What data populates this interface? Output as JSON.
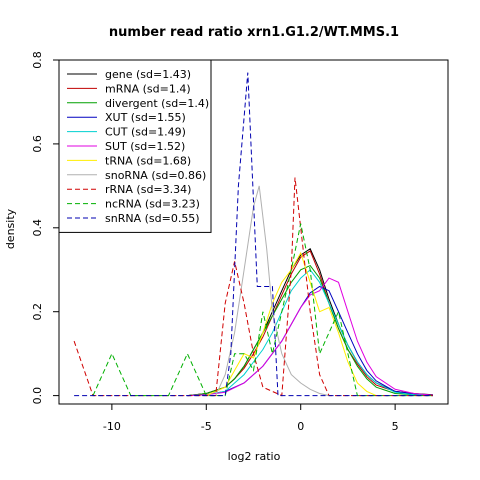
{
  "chart_data": {
    "type": "line",
    "title": "number read ratio xrn1.G1.2/WT.MMS.1",
    "xlabel": "log2 ratio",
    "ylabel": "density",
    "xlim": [
      -12.8,
      7.8
    ],
    "ylim": [
      -0.02,
      0.8
    ],
    "x_ticks": [
      -10,
      -5,
      0,
      5
    ],
    "x_tick_labels": [
      "-10",
      "-5",
      "0",
      "5"
    ],
    "y_ticks": [
      0.0,
      0.2,
      0.4,
      0.6,
      0.8
    ],
    "y_tick_labels": [
      "0.0",
      "0.2",
      "0.4",
      "0.6",
      "0.8"
    ],
    "grid": false,
    "legend_position": "top-left",
    "series": [
      {
        "name": "gene (sd=1.43)",
        "color": "#000000",
        "dash": "solid",
        "points": [
          [
            -6,
            0
          ],
          [
            -5,
            0.005
          ],
          [
            -4,
            0.02
          ],
          [
            -3.5,
            0.04
          ],
          [
            -3,
            0.07
          ],
          [
            -2.5,
            0.11
          ],
          [
            -2,
            0.15
          ],
          [
            -1.5,
            0.2
          ],
          [
            -1,
            0.25
          ],
          [
            -0.5,
            0.3
          ],
          [
            0,
            0.335
          ],
          [
            0.5,
            0.35
          ],
          [
            1,
            0.3
          ],
          [
            1.5,
            0.23
          ],
          [
            2,
            0.17
          ],
          [
            2.5,
            0.12
          ],
          [
            3,
            0.08
          ],
          [
            3.5,
            0.05
          ],
          [
            4,
            0.03
          ],
          [
            5,
            0.01
          ],
          [
            6,
            0.005
          ],
          [
            7,
            0.002
          ]
        ]
      },
      {
        "name": "mRNA (sd=1.4)",
        "color": "#c00000",
        "dash": "solid",
        "points": [
          [
            -6,
            0
          ],
          [
            -5,
            0.005
          ],
          [
            -4,
            0.02
          ],
          [
            -3.5,
            0.04
          ],
          [
            -3,
            0.065
          ],
          [
            -2.5,
            0.1
          ],
          [
            -2,
            0.14
          ],
          [
            -1.5,
            0.19
          ],
          [
            -1,
            0.24
          ],
          [
            -0.5,
            0.29
          ],
          [
            0,
            0.33
          ],
          [
            0.5,
            0.345
          ],
          [
            1,
            0.29
          ],
          [
            1.5,
            0.22
          ],
          [
            2,
            0.16
          ],
          [
            2.5,
            0.11
          ],
          [
            3,
            0.075
          ],
          [
            3.5,
            0.045
          ],
          [
            4,
            0.025
          ],
          [
            5,
            0.01
          ],
          [
            6,
            0.004
          ],
          [
            7,
            0.001
          ]
        ]
      },
      {
        "name": "divergent (sd=1.4)",
        "color": "#00a000",
        "dash": "solid",
        "points": [
          [
            -6,
            0
          ],
          [
            -5,
            0.005
          ],
          [
            -4,
            0.02
          ],
          [
            -3.5,
            0.04
          ],
          [
            -3,
            0.07
          ],
          [
            -2.5,
            0.11
          ],
          [
            -2,
            0.15
          ],
          [
            -1.5,
            0.19
          ],
          [
            -1,
            0.23
          ],
          [
            -0.5,
            0.27
          ],
          [
            0,
            0.3
          ],
          [
            0.5,
            0.31
          ],
          [
            1,
            0.28
          ],
          [
            1.5,
            0.22
          ],
          [
            2,
            0.16
          ],
          [
            2.5,
            0.11
          ],
          [
            3,
            0.07
          ],
          [
            3.5,
            0.04
          ],
          [
            4,
            0.02
          ],
          [
            5,
            0.005
          ],
          [
            6,
            0.002
          ],
          [
            7,
            0
          ]
        ]
      },
      {
        "name": "XUT (sd=1.55)",
        "color": "#0000c0",
        "dash": "solid",
        "points": [
          [
            -6,
            0
          ],
          [
            -5,
            0.002
          ],
          [
            -4,
            0.01
          ],
          [
            -3,
            0.03
          ],
          [
            -2,
            0.07
          ],
          [
            -1,
            0.13
          ],
          [
            -0.5,
            0.17
          ],
          [
            0,
            0.21
          ],
          [
            0.5,
            0.245
          ],
          [
            1,
            0.26
          ],
          [
            1.5,
            0.25
          ],
          [
            2,
            0.2
          ],
          [
            2.5,
            0.15
          ],
          [
            3,
            0.1
          ],
          [
            3.5,
            0.06
          ],
          [
            4,
            0.035
          ],
          [
            5,
            0.01
          ],
          [
            6,
            0.004
          ],
          [
            7,
            0.001
          ]
        ]
      },
      {
        "name": "CUT (sd=1.49)",
        "color": "#00d0d0",
        "dash": "solid",
        "points": [
          [
            -6,
            0
          ],
          [
            -5,
            0.002
          ],
          [
            -4,
            0.01
          ],
          [
            -3.5,
            0.03
          ],
          [
            -3,
            0.05
          ],
          [
            -2.5,
            0.08
          ],
          [
            -2,
            0.11
          ],
          [
            -1.5,
            0.15
          ],
          [
            -1,
            0.2
          ],
          [
            -0.5,
            0.25
          ],
          [
            0,
            0.28
          ],
          [
            0.5,
            0.3
          ],
          [
            1,
            0.27
          ],
          [
            1.5,
            0.22
          ],
          [
            2,
            0.17
          ],
          [
            2.5,
            0.12
          ],
          [
            3,
            0.08
          ],
          [
            3.5,
            0.05
          ],
          [
            4,
            0.03
          ],
          [
            5,
            0.008
          ],
          [
            6,
            0.002
          ],
          [
            7,
            0
          ]
        ]
      },
      {
        "name": "SUT (sd=1.52)",
        "color": "#e000e0",
        "dash": "solid",
        "points": [
          [
            -6,
            0
          ],
          [
            -5,
            0.002
          ],
          [
            -4,
            0.008
          ],
          [
            -3,
            0.03
          ],
          [
            -2,
            0.07
          ],
          [
            -1,
            0.13
          ],
          [
            -0.5,
            0.17
          ],
          [
            0,
            0.21
          ],
          [
            0.5,
            0.24
          ],
          [
            1,
            0.25
          ],
          [
            1.5,
            0.28
          ],
          [
            2,
            0.27
          ],
          [
            2.5,
            0.2
          ],
          [
            3,
            0.13
          ],
          [
            3.5,
            0.08
          ],
          [
            4,
            0.045
          ],
          [
            5,
            0.015
          ],
          [
            6,
            0.005
          ],
          [
            7,
            0.001
          ]
        ]
      },
      {
        "name": "tRNA (sd=1.68)",
        "color": "#ffee00",
        "dash": "solid",
        "points": [
          [
            -5,
            0
          ],
          [
            -4,
            0.02
          ],
          [
            -3.5,
            0.06
          ],
          [
            -3,
            0.1
          ],
          [
            -2.5,
            0.09
          ],
          [
            -2,
            0.15
          ],
          [
            -1.5,
            0.22
          ],
          [
            -1,
            0.27
          ],
          [
            -0.5,
            0.3
          ],
          [
            0,
            0.34
          ],
          [
            0.5,
            0.27
          ],
          [
            1,
            0.2
          ],
          [
            1.5,
            0.21
          ],
          [
            2,
            0.15
          ],
          [
            2.5,
            0.08
          ],
          [
            3,
            0.03
          ],
          [
            3.5,
            0.01
          ],
          [
            4,
            0
          ]
        ]
      },
      {
        "name": "snoRNA (sd=0.86)",
        "color": "#b0b0b0",
        "dash": "solid",
        "points": [
          [
            -4.5,
            0
          ],
          [
            -4,
            0.05
          ],
          [
            -3.5,
            0.15
          ],
          [
            -3,
            0.3
          ],
          [
            -2.5,
            0.45
          ],
          [
            -2.2,
            0.5
          ],
          [
            -1.8,
            0.35
          ],
          [
            -1.5,
            0.2
          ],
          [
            -1,
            0.1
          ],
          [
            -0.5,
            0.05
          ],
          [
            0,
            0.03
          ],
          [
            0.5,
            0.015
          ],
          [
            1,
            0.005
          ],
          [
            1.5,
            0
          ]
        ]
      },
      {
        "name": "rRNA (sd=3.34)",
        "color": "#d00000",
        "dash": "dashed",
        "points": [
          [
            -12,
            0.13
          ],
          [
            -11,
            0
          ],
          [
            -10,
            0
          ],
          [
            -6,
            0
          ],
          [
            -4.5,
            0
          ],
          [
            -4,
            0.22
          ],
          [
            -3.5,
            0.32
          ],
          [
            -3,
            0.22
          ],
          [
            -2.5,
            0.1
          ],
          [
            -2,
            0.02
          ],
          [
            -1,
            0
          ],
          [
            -0.5,
            0.3
          ],
          [
            -0.3,
            0.52
          ],
          [
            0,
            0.4
          ],
          [
            0.5,
            0.2
          ],
          [
            1,
            0.05
          ],
          [
            1.5,
            0
          ],
          [
            7,
            0
          ]
        ]
      },
      {
        "name": "ncRNA (sd=3.23)",
        "color": "#00b000",
        "dash": "dashed",
        "points": [
          [
            -11,
            0
          ],
          [
            -10,
            0.1
          ],
          [
            -9,
            0
          ],
          [
            -7,
            0
          ],
          [
            -6,
            0.1
          ],
          [
            -5,
            0
          ],
          [
            -4,
            0
          ],
          [
            -3.5,
            0.1
          ],
          [
            -3,
            0.1
          ],
          [
            -2.5,
            0.06
          ],
          [
            -2,
            0.2
          ],
          [
            -1.5,
            0.1
          ],
          [
            -1,
            0.2
          ],
          [
            -0.5,
            0.3
          ],
          [
            0,
            0.41
          ],
          [
            0.5,
            0.3
          ],
          [
            1,
            0.1
          ],
          [
            1.5,
            0.15
          ],
          [
            2,
            0.2
          ],
          [
            2.5,
            0.1
          ],
          [
            3,
            0
          ],
          [
            7,
            0
          ]
        ]
      },
      {
        "name": "snRNA (sd=0.55)",
        "color": "#0000b0",
        "dash": "dashed",
        "points": [
          [
            -12,
            0
          ],
          [
            -4,
            0
          ],
          [
            -3.7,
            0.1
          ],
          [
            -3.3,
            0.5
          ],
          [
            -2.8,
            0.77
          ],
          [
            -2.3,
            0.26
          ],
          [
            -1.5,
            0.26
          ],
          [
            -1.2,
            0
          ],
          [
            7,
            0
          ]
        ]
      }
    ]
  }
}
